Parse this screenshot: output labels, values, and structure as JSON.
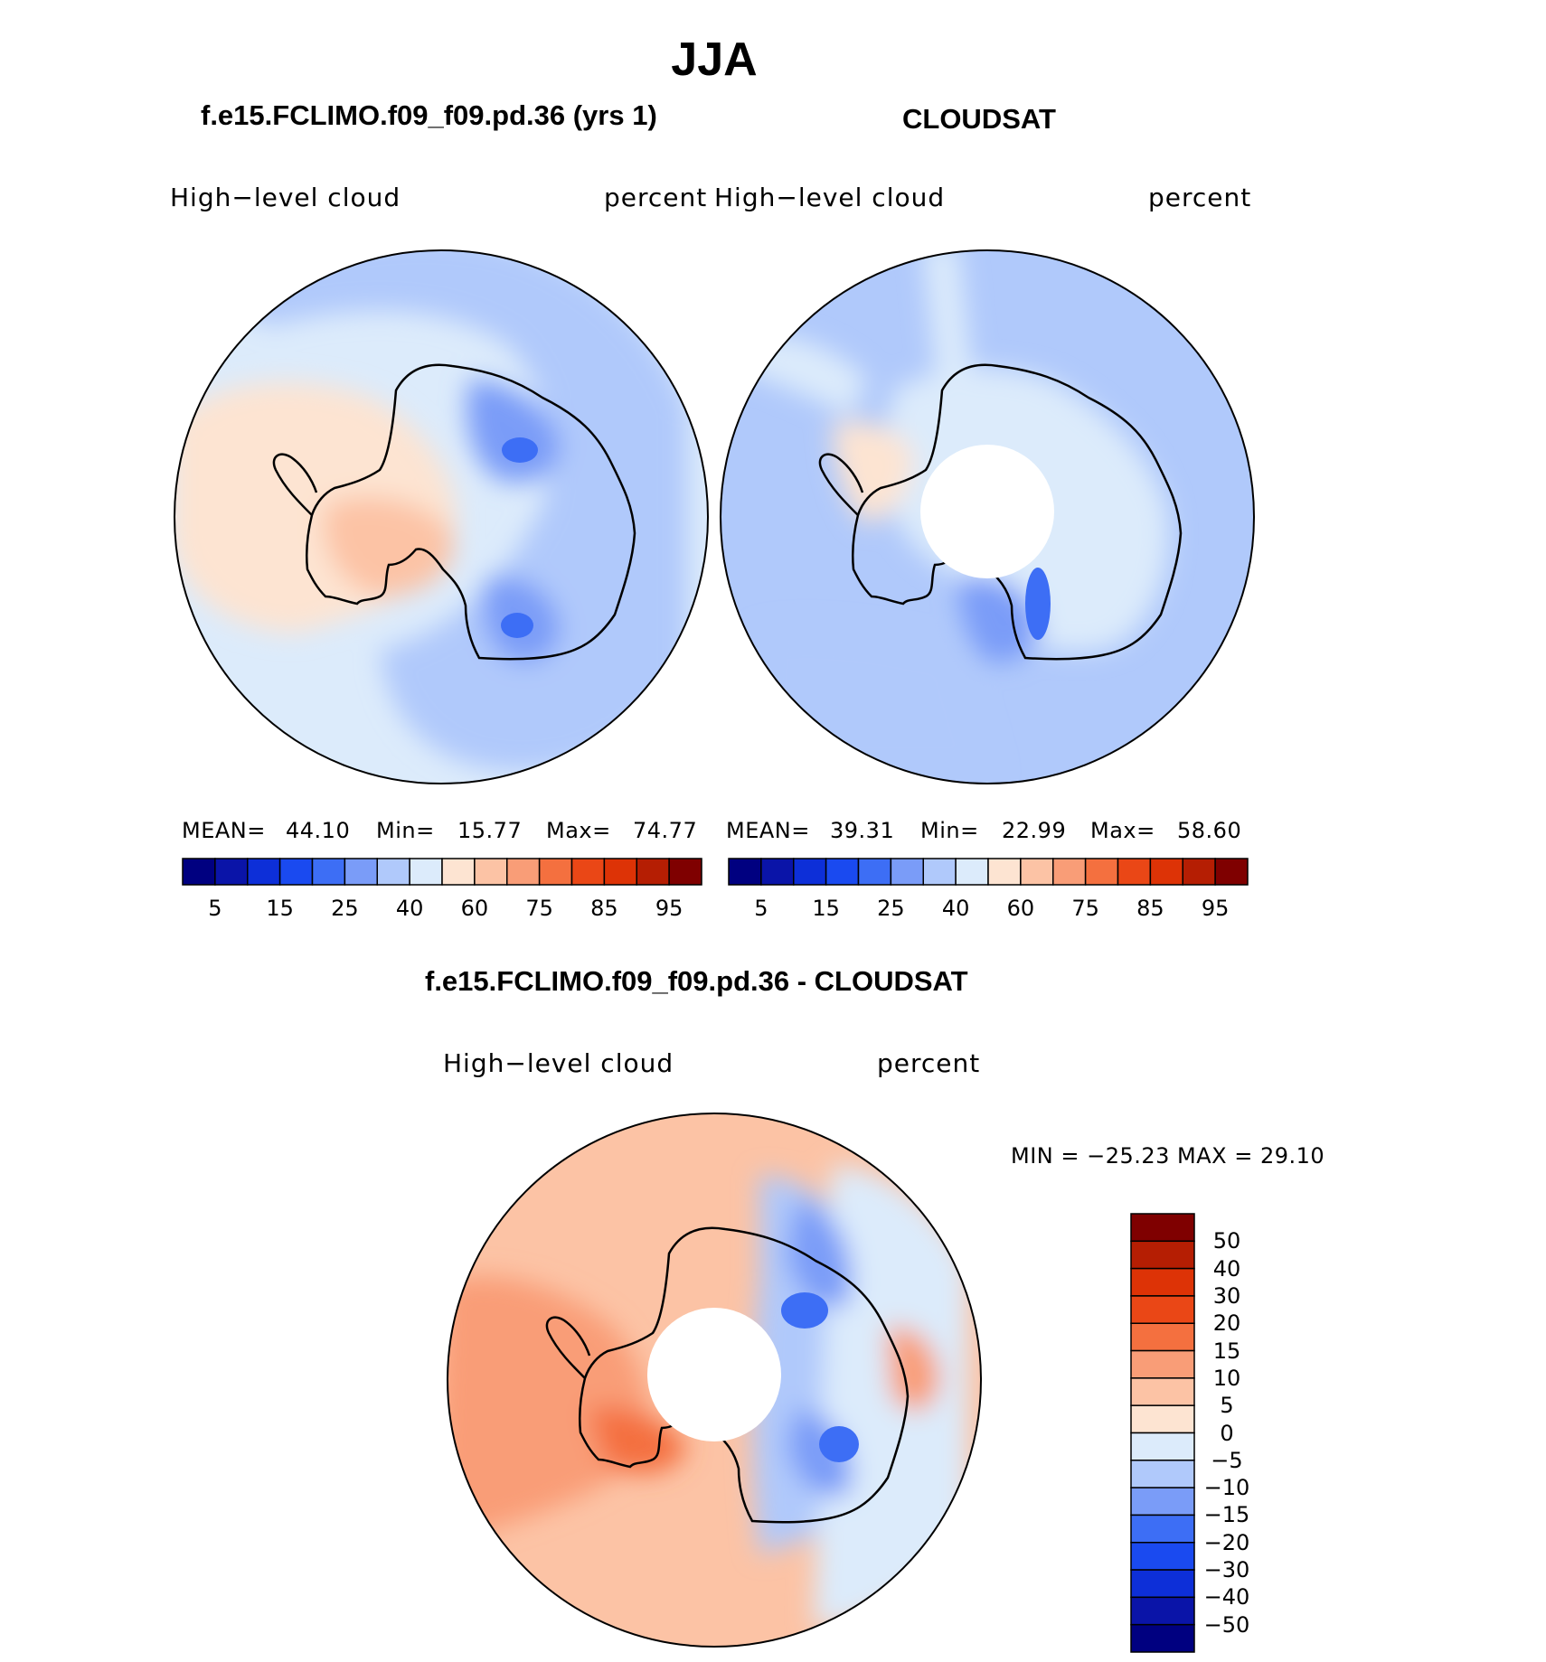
{
  "title": "JJA",
  "panels": [
    {
      "case": "f.e15.FCLIMO.f09_f09.pd.36 (yrs 1)",
      "variable": "High−level  cloud",
      "units": "percent",
      "mean_label": "MEAN=",
      "mean": "44.10",
      "min_label": "Min=",
      "min": "15.77",
      "max_label": "Max=",
      "max": "74.77"
    },
    {
      "case": "CLOUDSAT",
      "variable": "High−level  cloud",
      "units": "percent",
      "mean_label": "MEAN=",
      "mean": "39.31",
      "min_label": "Min=",
      "min": "22.99",
      "max_label": "Max=",
      "max": "58.60"
    }
  ],
  "diff": {
    "case": "f.e15.FCLIMO.f09_f09.pd.36 - CLOUDSAT",
    "variable": "High−level  cloud",
    "units": "percent",
    "minmax": "MIN = −25.23 MAX =   29.10"
  },
  "colors": {
    "field": [
      "#000080",
      "#0a14a8",
      "#0d2fd8",
      "#1a4af0",
      "#3d6ef5",
      "#7a9cf8",
      "#b0c9fb",
      "#dcebfb",
      "#fde4d2",
      "#fcc3a5",
      "#f99d77",
      "#f4703f",
      "#ea4716",
      "#dd3306",
      "#b51e03",
      "#7f0000"
    ],
    "diff": [
      "#000080",
      "#0a14a8",
      "#0d2fd8",
      "#1a4af0",
      "#3d6ef5",
      "#7a9cf8",
      "#b0c9fb",
      "#dcebfb",
      "#fde4d2",
      "#fcc3a5",
      "#f99d77",
      "#f4703f",
      "#ea4716",
      "#dd3306",
      "#b51e03",
      "#7f0000"
    ],
    "land_outline": "#000000"
  },
  "chart_data": [
    {
      "type": "heatmap",
      "projection": "south-polar-stereographic",
      "title": "f.e15.FCLIMO.f09_f09.pd.36 (yrs 1)",
      "colorbar": {
        "orientation": "horizontal",
        "levels": [
          5,
          10,
          15,
          20,
          25,
          30,
          40,
          50,
          60,
          70,
          75,
          80,
          85,
          90,
          95
        ],
        "tick_labels": [
          "5",
          "15",
          "25",
          "40",
          "60",
          "75",
          "85",
          "95"
        ]
      },
      "stats": {
        "mean": 44.1,
        "min": 15.77,
        "max": 74.77
      }
    },
    {
      "type": "heatmap",
      "projection": "south-polar-stereographic",
      "title": "CLOUDSAT",
      "colorbar": {
        "orientation": "horizontal",
        "levels": [
          5,
          10,
          15,
          20,
          25,
          30,
          40,
          50,
          60,
          70,
          75,
          80,
          85,
          90,
          95
        ],
        "tick_labels": [
          "5",
          "15",
          "25",
          "40",
          "60",
          "75",
          "85",
          "95"
        ]
      },
      "stats": {
        "mean": 39.31,
        "min": 22.99,
        "max": 58.6
      }
    },
    {
      "type": "heatmap",
      "projection": "south-polar-stereographic",
      "title": "f.e15.FCLIMO.f09_f09.pd.36 - CLOUDSAT",
      "colorbar": {
        "orientation": "vertical",
        "levels": [
          -50,
          -40,
          -30,
          -20,
          -15,
          -10,
          -5,
          0,
          5,
          10,
          15,
          20,
          30,
          40,
          50
        ],
        "tick_labels": [
          "50",
          "40",
          "30",
          "20",
          "15",
          "10",
          "5",
          "0",
          "−5",
          "−10",
          "−15",
          "−20",
          "−30",
          "−40",
          "−50"
        ]
      },
      "stats": {
        "min": -25.23,
        "max": 29.1
      }
    }
  ]
}
